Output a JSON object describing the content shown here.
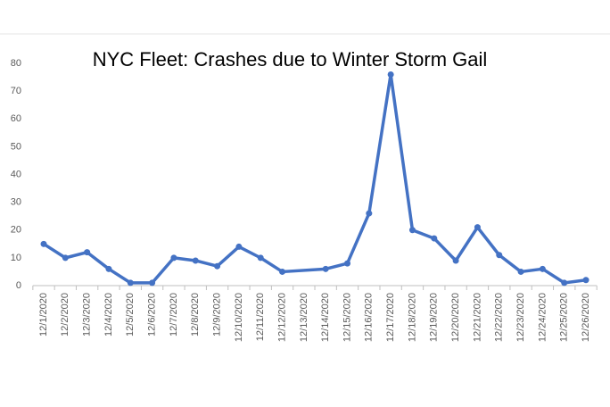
{
  "chart_data": {
    "type": "line",
    "title": "NYC Fleet: Crashes due to Winter Storm Gail",
    "categories": [
      "12/1/2020",
      "12/2/2020",
      "12/3/2020",
      "12/4/2020",
      "12/5/2020",
      "12/6/2020",
      "12/7/2020",
      "12/8/2020",
      "12/9/2020",
      "12/10/2020",
      "12/11/2020",
      "12/12/2020",
      "12/13/2020",
      "12/14/2020",
      "12/15/2020",
      "12/16/2020",
      "12/17/2020",
      "12/18/2020",
      "12/19/2020",
      "12/20/2020",
      "12/21/2020",
      "12/22/2020",
      "12/23/2020",
      "12/24/2020",
      "12/25/2020",
      "12/26/2020"
    ],
    "series": [
      {
        "color": "#4472c4",
        "values": [
          15,
          10,
          12,
          6,
          1,
          1,
          10,
          9,
          7,
          14,
          10,
          5,
          null,
          6,
          8,
          26,
          76,
          20,
          17,
          9,
          21,
          11,
          5,
          6,
          1,
          2
        ]
      }
    ],
    "ylim": [
      0,
      80
    ],
    "yticks": [
      0,
      10,
      20,
      30,
      40,
      50,
      60,
      70,
      80
    ],
    "grid": false,
    "connect_gaps": true
  }
}
